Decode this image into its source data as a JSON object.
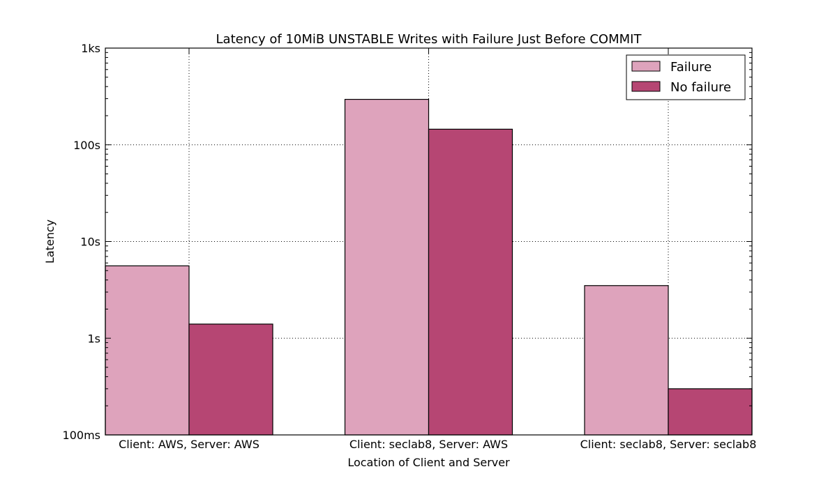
{
  "chart_data": {
    "type": "bar",
    "title": "Latency of 10MiB UNSTABLE Writes with Failure Just Before COMMIT",
    "xlabel": "Location of Client and Server",
    "ylabel": "Latency",
    "yscale": "log",
    "ylim": [
      0.1,
      1000
    ],
    "yunit": "s",
    "yticks": [
      {
        "value": 0.1,
        "label": "100ms"
      },
      {
        "value": 1,
        "label": "1s"
      },
      {
        "value": 10,
        "label": "10s"
      },
      {
        "value": 100,
        "label": "100s"
      },
      {
        "value": 1000,
        "label": "1ks"
      }
    ],
    "categories": [
      "Client: AWS, Server: AWS",
      "Client: seclab8, Server: AWS",
      "Client: seclab8, Server: seclab8"
    ],
    "series": [
      {
        "name": "Failure",
        "color": "#dea3bc",
        "values": [
          5.6,
          295,
          3.5
        ]
      },
      {
        "name": "No failure",
        "color": "#b64673",
        "values": [
          1.4,
          145,
          0.3
        ]
      }
    ],
    "legend": "top-right",
    "grid": true
  }
}
